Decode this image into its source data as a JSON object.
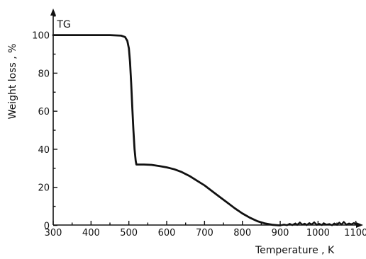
{
  "chart_data": {
    "type": "line",
    "xlabel": "Temperature , K",
    "ylabel": "Weight loss , %",
    "xlim": [
      300,
      1150
    ],
    "ylim": [
      0,
      115
    ],
    "x_ticks": [
      300,
      400,
      500,
      600,
      700,
      800,
      900,
      1000,
      1100
    ],
    "y_ticks": [
      0,
      20,
      40,
      60,
      80,
      100
    ],
    "grid": false,
    "series": [
      {
        "name": "TG",
        "x": [
          300,
          450,
          480,
          490,
          496,
          500,
          503,
          506,
          509,
          512,
          515,
          518,
          520,
          540,
          560,
          580,
          600,
          620,
          640,
          660,
          680,
          700,
          720,
          740,
          760,
          780,
          800,
          820,
          840,
          860,
          880,
          895,
          900
        ],
        "y": [
          100,
          100,
          99.7,
          99,
          97,
          93,
          86,
          75,
          62,
          50,
          40,
          34,
          32,
          32,
          31.8,
          31.2,
          30.5,
          29.5,
          28,
          26,
          23.5,
          21,
          18,
          15,
          12,
          9,
          6.3,
          4,
          2.2,
          1,
          0.3,
          0.05,
          0
        ]
      },
      {
        "name": "",
        "x": [
          900,
          910,
          918,
          925,
          932,
          940,
          945,
          952,
          958,
          965,
          970,
          977,
          983,
          990,
          997,
          1003,
          1010,
          1015,
          1022,
          1030,
          1037,
          1043,
          1050,
          1056,
          1062,
          1068,
          1075,
          1082,
          1088,
          1095,
          1100
        ],
        "y": [
          0,
          0.4,
          0.1,
          0.8,
          0.2,
          1.0,
          0.3,
          1.5,
          0.4,
          0.9,
          0.2,
          1.2,
          0.5,
          1.6,
          0.3,
          0.8,
          0.2,
          1.1,
          0.4,
          0.7,
          0.1,
          1.0,
          0.3,
          1.4,
          0.5,
          1.8,
          0.4,
          1.0,
          0.6,
          1.3,
          0.5
        ]
      }
    ],
    "annotations": [
      {
        "text": "TG",
        "x": 310,
        "y": 104
      }
    ]
  }
}
